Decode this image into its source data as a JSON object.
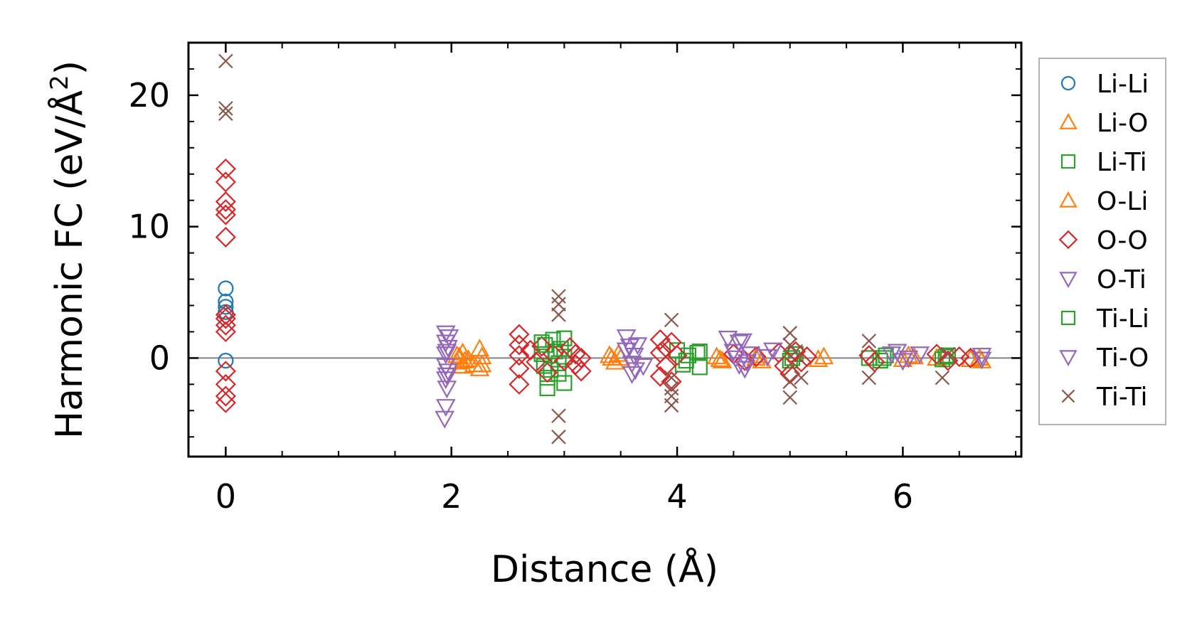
{
  "chart_data": {
    "type": "scatter",
    "title": "",
    "xlabel": "Distance (Å)",
    "ylabel_main": "Harmonic FC (eV/Å",
    "ylabel_sup": "2",
    "ylabel_close": ")",
    "xlim": [
      -0.33,
      7.05
    ],
    "ylim": [
      -7.5,
      24.0
    ],
    "xticks": [
      0,
      2,
      4,
      6
    ],
    "xtick_labels": [
      "0",
      "2",
      "4",
      "6"
    ],
    "yticks": [
      0,
      10,
      20
    ],
    "ytick_labels": [
      "0",
      "10",
      "20"
    ],
    "x_minor_step": 0.5,
    "y_minor_step": 2,
    "reference_line_y": 0,
    "legend_position": "outside-right",
    "grid": false,
    "series": [
      {
        "name": "Li-Li",
        "marker": "circle",
        "color": "#1f77b4",
        "points": [
          [
            0,
            5.3
          ],
          [
            0,
            4.3
          ],
          [
            0,
            3.9
          ],
          [
            0,
            3.5
          ],
          [
            0,
            -0.2
          ]
        ]
      },
      {
        "name": "Li-O",
        "marker": "triangle-up",
        "color": "#ff7f0e",
        "points": [
          [
            2.05,
            0.2
          ],
          [
            2.05,
            -0.3
          ],
          [
            2.1,
            -0.6
          ],
          [
            2.1,
            0.4
          ],
          [
            2.15,
            -0.1
          ],
          [
            2.2,
            -0.5
          ],
          [
            2.25,
            0.7
          ],
          [
            2.25,
            -0.8
          ],
          [
            2.27,
            0.1
          ],
          [
            2.27,
            -0.5
          ],
          [
            3.4,
            0.2
          ],
          [
            3.45,
            -0.3
          ],
          [
            3.5,
            0.0
          ],
          [
            4.35,
            0.1
          ],
          [
            4.4,
            -0.2
          ],
          [
            4.7,
            0.0
          ],
          [
            4.75,
            -0.2
          ],
          [
            5.3,
            0.1
          ],
          [
            6.0,
            -0.1
          ],
          [
            6.1,
            0.1
          ],
          [
            6.3,
            0.0
          ],
          [
            6.6,
            -0.1
          ],
          [
            6.7,
            -0.2
          ]
        ]
      },
      {
        "name": "Li-Ti",
        "marker": "square",
        "color": "#2ca02c",
        "points": [
          [
            2.8,
            1.2
          ],
          [
            2.8,
            0.3
          ],
          [
            2.82,
            -0.6
          ],
          [
            2.85,
            -1.5
          ],
          [
            2.85,
            -2.3
          ],
          [
            2.9,
            1.4
          ],
          [
            2.92,
            0.5
          ],
          [
            2.95,
            -0.4
          ],
          [
            2.95,
            -1.2
          ],
          [
            3.0,
            1.5
          ],
          [
            3.0,
            0.1
          ],
          [
            3.0,
            -1.9
          ],
          [
            4.0,
            0.6
          ],
          [
            4.05,
            -0.5
          ],
          [
            4.1,
            0.2
          ],
          [
            4.2,
            0.5
          ],
          [
            4.2,
            -0.7
          ],
          [
            5.0,
            -0.2
          ],
          [
            5.05,
            0.3
          ],
          [
            5.7,
            0.0
          ],
          [
            5.8,
            -0.2
          ],
          [
            5.85,
            0.2
          ],
          [
            6.35,
            -0.1
          ],
          [
            6.4,
            0.2
          ]
        ]
      },
      {
        "name": "O-Li",
        "marker": "triangle-up",
        "color": "#ff7f0e",
        "points": [
          [
            2.07,
            0.1
          ],
          [
            2.12,
            -0.2
          ],
          [
            3.42,
            0.0
          ],
          [
            3.48,
            0.3
          ],
          [
            4.38,
            -0.1
          ],
          [
            4.72,
            0.2
          ],
          [
            5.25,
            -0.1
          ],
          [
            6.05,
            0.2
          ],
          [
            6.68,
            0.0
          ]
        ]
      },
      {
        "name": "O-O",
        "marker": "diamond",
        "color": "#d62728",
        "points": [
          [
            0,
            14.4
          ],
          [
            0,
            13.4
          ],
          [
            0,
            11.9
          ],
          [
            0,
            11.3
          ],
          [
            0,
            10.9
          ],
          [
            0,
            9.2
          ],
          [
            0,
            3.3
          ],
          [
            0,
            3.0
          ],
          [
            0,
            2.5
          ],
          [
            0,
            2.0
          ],
          [
            0,
            -1.0
          ],
          [
            0,
            -2.0
          ],
          [
            0,
            -2.9
          ],
          [
            0,
            -3.4
          ],
          [
            2.6,
            1.8
          ],
          [
            2.6,
            1.0
          ],
          [
            2.6,
            0.2
          ],
          [
            2.6,
            -0.8
          ],
          [
            2.6,
            -2.0
          ],
          [
            2.7,
            0.6
          ],
          [
            2.75,
            -0.3
          ],
          [
            2.8,
            0.9
          ],
          [
            2.85,
            -1.1
          ],
          [
            2.9,
            0.3
          ],
          [
            3.0,
            -0.2
          ],
          [
            3.05,
            0.8
          ],
          [
            3.1,
            -0.5
          ],
          [
            3.1,
            0.3
          ],
          [
            3.15,
            0.0
          ],
          [
            3.15,
            -1.0
          ],
          [
            3.85,
            1.4
          ],
          [
            3.85,
            0.4
          ],
          [
            3.85,
            -1.4
          ],
          [
            3.9,
            0.8
          ],
          [
            3.9,
            -0.6
          ],
          [
            3.95,
            1.2
          ],
          [
            3.95,
            -1.8
          ],
          [
            4.0,
            0.2
          ],
          [
            4.5,
            0.3
          ],
          [
            4.6,
            -0.2
          ],
          [
            4.7,
            0.1
          ],
          [
            4.9,
            0.4
          ],
          [
            4.95,
            -0.6
          ],
          [
            5.0,
            -1.2
          ],
          [
            5.05,
            0.5
          ],
          [
            5.1,
            -0.3
          ],
          [
            5.15,
            0.1
          ],
          [
            5.7,
            0.2
          ],
          [
            5.75,
            -0.3
          ],
          [
            6.3,
            0.3
          ],
          [
            6.4,
            -0.2
          ],
          [
            6.5,
            0.1
          ],
          [
            6.6,
            0.0
          ]
        ]
      },
      {
        "name": "O-Ti",
        "marker": "triangle-down",
        "color": "#9467bd",
        "points": [
          [
            1.95,
            1.9
          ],
          [
            1.95,
            1.2
          ],
          [
            1.95,
            0.3
          ],
          [
            1.95,
            -0.6
          ],
          [
            1.95,
            -1.6
          ],
          [
            1.96,
            -2.3
          ],
          [
            1.95,
            -3.7
          ],
          [
            1.94,
            -4.6
          ],
          [
            1.97,
            0.8
          ],
          [
            1.97,
            -1.0
          ],
          [
            3.55,
            1.6
          ],
          [
            3.55,
            0.6
          ],
          [
            3.6,
            -0.4
          ],
          [
            3.6,
            -1.2
          ],
          [
            3.62,
            0.2
          ],
          [
            3.65,
            1.0
          ],
          [
            3.7,
            -0.6
          ],
          [
            4.45,
            1.5
          ],
          [
            4.5,
            0.5
          ],
          [
            4.55,
            -0.5
          ],
          [
            4.55,
            1.2
          ],
          [
            4.6,
            -0.8
          ],
          [
            4.65,
            0.3
          ],
          [
            4.8,
            0.1
          ],
          [
            4.85,
            0.6
          ],
          [
            5.95,
            0.5
          ],
          [
            6.0,
            -0.2
          ],
          [
            6.15,
            0.3
          ],
          [
            6.7,
            0.2
          ]
        ]
      },
      {
        "name": "Ti-Li",
        "marker": "square",
        "color": "#2ca02c",
        "points": [
          [
            2.83,
            1.0
          ],
          [
            2.88,
            -0.9
          ],
          [
            2.97,
            0.7
          ],
          [
            4.08,
            -0.2
          ],
          [
            4.18,
            0.4
          ],
          [
            5.02,
            0.0
          ],
          [
            5.83,
            0.0
          ],
          [
            6.38,
            0.1
          ]
        ]
      },
      {
        "name": "Ti-O",
        "marker": "triangle-down",
        "color": "#9467bd",
        "points": [
          [
            1.96,
            0.5
          ],
          [
            1.96,
            -1.3
          ],
          [
            1.98,
            1.6
          ],
          [
            3.58,
            0.9
          ],
          [
            3.63,
            -0.9
          ],
          [
            4.52,
            0.0
          ],
          [
            4.58,
            1.3
          ],
          [
            4.62,
            -0.3
          ],
          [
            5.9,
            0.3
          ],
          [
            6.05,
            0.0
          ],
          [
            6.7,
            -0.1
          ]
        ]
      },
      {
        "name": "Ti-Ti",
        "marker": "x",
        "color": "#8c564b",
        "points": [
          [
            0,
            22.6
          ],
          [
            0,
            19.0
          ],
          [
            0,
            18.6
          ],
          [
            2.95,
            4.7
          ],
          [
            2.95,
            4.1
          ],
          [
            2.95,
            3.3
          ],
          [
            2.95,
            -4.4
          ],
          [
            2.95,
            -6.0
          ],
          [
            3.95,
            2.9
          ],
          [
            3.95,
            -1.5
          ],
          [
            3.95,
            -2.3
          ],
          [
            3.95,
            -2.9
          ],
          [
            3.95,
            -3.6
          ],
          [
            5.0,
            1.9
          ],
          [
            5.0,
            1.0
          ],
          [
            5.0,
            -1.8
          ],
          [
            5.0,
            -3.0
          ],
          [
            5.1,
            -1.5
          ],
          [
            5.05,
            0.5
          ],
          [
            5.7,
            1.3
          ],
          [
            5.7,
            -1.5
          ],
          [
            6.35,
            -1.5
          ],
          [
            6.4,
            0.3
          ]
        ]
      }
    ]
  }
}
